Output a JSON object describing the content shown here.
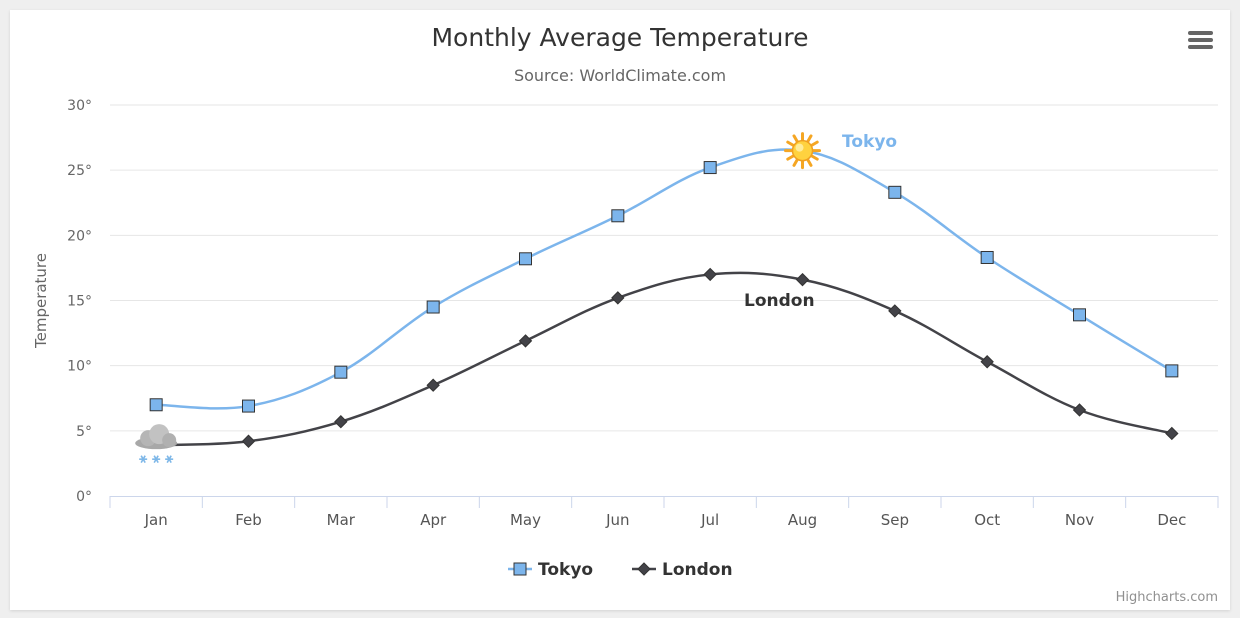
{
  "chart_data": {
    "type": "line",
    "title": "Monthly Average Temperature",
    "subtitle": "Source: WorldClimate.com",
    "xlabel": "",
    "ylabel": "Temperature",
    "categories": [
      "Jan",
      "Feb",
      "Mar",
      "Apr",
      "May",
      "Jun",
      "Jul",
      "Aug",
      "Sep",
      "Oct",
      "Nov",
      "Dec"
    ],
    "ylim": [
      0,
      30
    ],
    "yticks": [
      0,
      5,
      10,
      15,
      20,
      25,
      30
    ],
    "ytick_suffix": "°",
    "grid": true,
    "legend": "bottom-center",
    "series": [
      {
        "name": "Tokyo",
        "marker": "square",
        "color": "#7cb5ec",
        "values": [
          7.0,
          6.9,
          9.5,
          14.5,
          18.2,
          21.5,
          25.2,
          26.5,
          23.3,
          18.3,
          13.9,
          9.6
        ],
        "label": "Tokyo",
        "special_marker": {
          "index": 7,
          "icon": "sun-icon"
        }
      },
      {
        "name": "London",
        "marker": "diamond",
        "color": "#434348",
        "values": [
          3.9,
          4.2,
          5.7,
          8.5,
          11.9,
          15.2,
          17.0,
          16.6,
          14.2,
          10.3,
          6.6,
          4.8
        ],
        "label": "London",
        "special_marker": {
          "index": 0,
          "icon": "snow-cloud-icon"
        }
      }
    ]
  },
  "ui": {
    "menu_icon": "hamburger-menu-icon",
    "credits": "Highcharts.com"
  }
}
